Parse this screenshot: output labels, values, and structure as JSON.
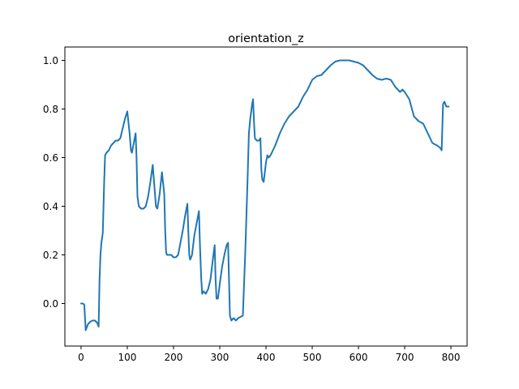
{
  "chart_data": {
    "type": "line",
    "title": "orientation_z",
    "xlabel": "",
    "ylabel": "",
    "xlim": [
      -35,
      835
    ],
    "ylim": [
      -0.175,
      1.055
    ],
    "xticks": [
      0,
      100,
      200,
      300,
      400,
      500,
      600,
      700,
      800
    ],
    "yticks": [
      0.0,
      0.2,
      0.4,
      0.6,
      0.8,
      1.0
    ],
    "xtick_labels": [
      "0",
      "100",
      "200",
      "300",
      "400",
      "500",
      "600",
      "700",
      "800"
    ],
    "ytick_labels": [
      "0.0",
      "0.2",
      "0.4",
      "0.6",
      "0.8",
      "1.0"
    ],
    "grid": false,
    "legend": "none",
    "series": [
      {
        "color": "#1f77b4",
        "x": [
          0,
          4,
          7,
          10,
          15,
          20,
          25,
          30,
          35,
          38,
          40,
          42,
          44,
          47,
          50,
          52,
          55,
          60,
          65,
          70,
          75,
          80,
          85,
          90,
          95,
          100,
          105,
          108,
          110,
          112,
          115,
          118,
          120,
          122,
          125,
          130,
          135,
          140,
          145,
          150,
          155,
          160,
          162,
          165,
          170,
          175,
          180,
          182,
          184,
          186,
          190,
          195,
          200,
          205,
          210,
          215,
          220,
          225,
          230,
          232,
          234,
          236,
          240,
          245,
          250,
          255,
          257,
          260,
          262,
          265,
          270,
          275,
          280,
          285,
          289,
          291,
          293,
          296,
          300,
          305,
          310,
          315,
          318,
          320,
          322,
          325,
          330,
          335,
          340,
          345,
          350,
          355,
          360,
          363,
          366,
          370,
          372,
          374,
          376,
          380,
          385,
          388,
          390,
          392,
          395,
          400,
          403,
          406,
          410,
          415,
          420,
          430,
          440,
          450,
          460,
          470,
          480,
          490,
          500,
          510,
          520,
          530,
          540,
          550,
          560,
          570,
          580,
          590,
          600,
          610,
          620,
          630,
          640,
          650,
          660,
          670,
          680,
          690,
          695,
          700,
          710,
          720,
          730,
          740,
          750,
          760,
          770,
          777,
          780,
          783,
          786,
          790,
          795
        ],
        "y": [
          0.0,
          0.0,
          -0.005,
          -0.11,
          -0.085,
          -0.075,
          -0.07,
          -0.07,
          -0.08,
          -0.095,
          0.1,
          0.2,
          0.25,
          0.29,
          0.5,
          0.61,
          0.62,
          0.63,
          0.65,
          0.66,
          0.67,
          0.67,
          0.68,
          0.72,
          0.76,
          0.79,
          0.7,
          0.63,
          0.62,
          0.64,
          0.67,
          0.7,
          0.6,
          0.44,
          0.4,
          0.39,
          0.39,
          0.4,
          0.44,
          0.5,
          0.57,
          0.45,
          0.4,
          0.39,
          0.45,
          0.54,
          0.45,
          0.3,
          0.21,
          0.2,
          0.2,
          0.2,
          0.19,
          0.19,
          0.2,
          0.25,
          0.3,
          0.36,
          0.41,
          0.3,
          0.2,
          0.18,
          0.2,
          0.28,
          0.33,
          0.38,
          0.25,
          0.1,
          0.04,
          0.05,
          0.04,
          0.06,
          0.1,
          0.18,
          0.24,
          0.1,
          0.02,
          0.02,
          0.08,
          0.15,
          0.2,
          0.24,
          0.25,
          0.1,
          -0.05,
          -0.07,
          -0.06,
          -0.07,
          -0.06,
          -0.055,
          -0.05,
          0.2,
          0.5,
          0.7,
          0.76,
          0.82,
          0.84,
          0.75,
          0.68,
          0.67,
          0.67,
          0.68,
          0.55,
          0.51,
          0.5,
          0.58,
          0.61,
          0.6,
          0.61,
          0.63,
          0.65,
          0.7,
          0.74,
          0.77,
          0.79,
          0.81,
          0.85,
          0.88,
          0.92,
          0.935,
          0.94,
          0.96,
          0.98,
          0.995,
          1.0,
          1.0,
          1.0,
          0.995,
          0.99,
          0.98,
          0.96,
          0.94,
          0.925,
          0.92,
          0.925,
          0.92,
          0.89,
          0.87,
          0.88,
          0.87,
          0.84,
          0.77,
          0.75,
          0.74,
          0.7,
          0.66,
          0.65,
          0.64,
          0.63,
          0.82,
          0.83,
          0.81,
          0.81
        ]
      }
    ]
  }
}
